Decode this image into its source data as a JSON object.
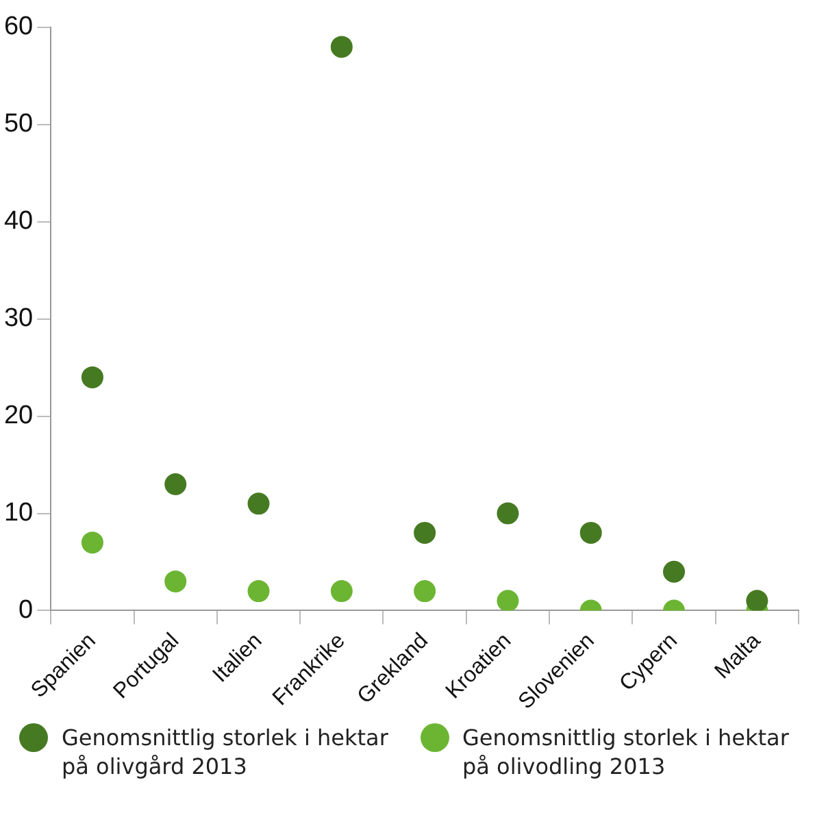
{
  "chart_data": {
    "type": "scatter",
    "categories": [
      "Spanien",
      "Portugal",
      "Italien",
      "Frankrike",
      "Grekland",
      "Kroatien",
      "Slovenien",
      "Cypern",
      "Malta"
    ],
    "series": [
      {
        "name": "Genomsnittlig storlek i hektar på olivgård 2013",
        "color": "#467a22",
        "values": [
          24,
          13,
          11,
          58,
          8,
          10,
          8,
          4,
          1
        ]
      },
      {
        "name": "Genomsnittlig storlek i hektar på olivodling 2013",
        "color": "#6cb533",
        "values": [
          7,
          3,
          2,
          2,
          2,
          1,
          0,
          0,
          0
        ]
      }
    ],
    "ylim": [
      0,
      60
    ],
    "yticks": [
      0,
      10,
      20,
      30,
      40,
      50,
      60
    ],
    "grid": false,
    "legend": "bottom",
    "marker": "circle"
  }
}
